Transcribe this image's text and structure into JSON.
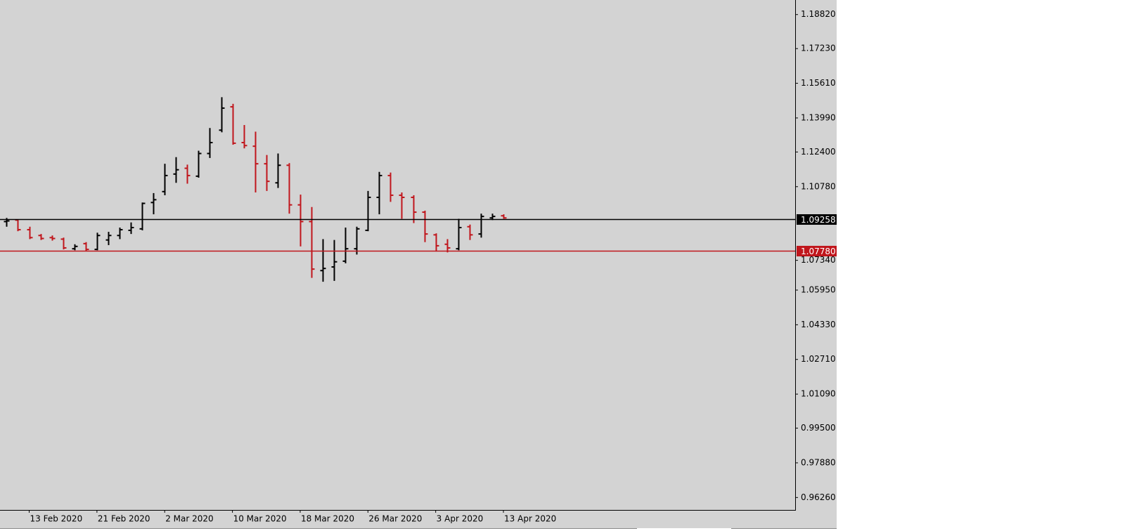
{
  "chart_data": {
    "type": "ohlc",
    "categories": [
      null,
      null,
      "13 Feb 2020",
      null,
      null,
      null,
      null,
      null,
      "21 Feb 2020",
      null,
      null,
      null,
      null,
      null,
      "2 Mar 2020",
      null,
      null,
      null,
      null,
      null,
      "10 Mar 2020",
      null,
      null,
      null,
      null,
      null,
      "18 Mar 2020",
      null,
      null,
      null,
      null,
      null,
      "26 Mar 2020",
      null,
      null,
      null,
      null,
      null,
      "3 Apr 2020",
      null,
      null,
      null,
      null,
      null,
      "13 Apr 2020"
    ],
    "open": [
      1.0915,
      1.0922,
      1.0877,
      1.085,
      1.084,
      1.0833,
      1.0788,
      1.0812,
      1.0785,
      1.0829,
      1.085,
      1.0874,
      1.0881,
      1.1004,
      1.1055,
      1.1137,
      1.1164,
      1.1127,
      1.1233,
      1.1342,
      1.1451,
      1.1284,
      1.1267,
      1.1185,
      1.1096,
      1.1178,
      1.0993,
      1.0915,
      1.0686,
      1.0703,
      1.073,
      1.0788,
      1.0874,
      1.1028,
      1.113,
      1.1038,
      1.1028,
      1.0959,
      1.0853,
      1.0809,
      1.0788,
      1.0891,
      1.0857,
      1.0932,
      1.0942
    ],
    "high": [
      1.0932,
      1.0925,
      1.0891,
      1.0857,
      1.085,
      1.084,
      1.0809,
      1.0819,
      1.0863,
      1.0867,
      1.0887,
      1.0911,
      1.1004,
      1.1048,
      1.1185,
      1.1216,
      1.1181,
      1.1246,
      1.1352,
      1.1496,
      1.1465,
      1.1366,
      1.1335,
      1.1226,
      1.1233,
      1.1188,
      1.1041,
      1.0983,
      1.0833,
      1.0829,
      1.0887,
      1.0891,
      1.1058,
      1.1147,
      1.1144,
      1.1051,
      1.1038,
      1.0966,
      1.086,
      1.0833,
      1.0928,
      1.0901,
      1.0952,
      1.0952,
      1.0949
    ],
    "low": [
      1.0891,
      1.087,
      1.0833,
      1.0829,
      1.0826,
      1.0785,
      1.0781,
      1.0778,
      1.0781,
      1.0805,
      1.0833,
      1.0857,
      1.0874,
      1.0949,
      1.1038,
      1.1096,
      1.1092,
      1.112,
      1.1212,
      1.1332,
      1.1274,
      1.1257,
      1.1051,
      1.1058,
      1.1072,
      1.0952,
      1.0799,
      1.0652,
      1.0634,
      1.0638,
      1.072,
      1.0761,
      1.087,
      1.0949,
      1.1007,
      1.0928,
      1.0908,
      1.0819,
      1.0775,
      1.0771,
      1.0781,
      1.0829,
      1.084,
      1.0922,
      1.0928
    ],
    "close": [
      1.0918,
      1.0877,
      1.084,
      1.0836,
      1.0836,
      1.0792,
      1.0799,
      1.0785,
      1.085,
      1.085,
      1.0877,
      1.0887,
      1.1,
      1.1017,
      1.113,
      1.1157,
      1.113,
      1.1233,
      1.1284,
      1.1445,
      1.1281,
      1.127,
      1.1185,
      1.1103,
      1.1178,
      1.0993,
      1.0915,
      1.0693,
      1.0696,
      1.0727,
      1.0788,
      1.0881,
      1.1028,
      1.113,
      1.1038,
      1.1028,
      1.0959,
      1.0857,
      1.0802,
      1.0792,
      1.0887,
      1.0853,
      1.0939,
      1.0939,
      1.0932
    ],
    "up_color": "#000000",
    "down_color": "#c0161c",
    "ylim": [
      0.9568,
      1.195
    ],
    "yticks": [
      {
        "value": 1.1882,
        "label": "1.18820"
      },
      {
        "value": 1.1723,
        "label": "1.17230"
      },
      {
        "value": 1.1561,
        "label": "1.15610"
      },
      {
        "value": 1.1399,
        "label": "1.13990"
      },
      {
        "value": 1.124,
        "label": "1.12400"
      },
      {
        "value": 1.1078,
        "label": "1.10780"
      },
      {
        "value": 1.0734,
        "label": "1.07340"
      },
      {
        "value": 1.0595,
        "label": "1.05950"
      },
      {
        "value": 1.0433,
        "label": "1.04330"
      },
      {
        "value": 1.0271,
        "label": "1.02710"
      },
      {
        "value": 1.0109,
        "label": "1.01090"
      },
      {
        "value": 0.995,
        "label": "0.99500"
      },
      {
        "value": 0.9788,
        "label": "0.97880"
      },
      {
        "value": 0.9626,
        "label": "0.96260"
      }
    ],
    "levels": [
      {
        "value": 1.0778,
        "label": "1.07780",
        "color": "#c0161c"
      },
      {
        "value": 1.09258,
        "label": "1.09258",
        "color": "#000000"
      }
    ],
    "grid": false
  }
}
